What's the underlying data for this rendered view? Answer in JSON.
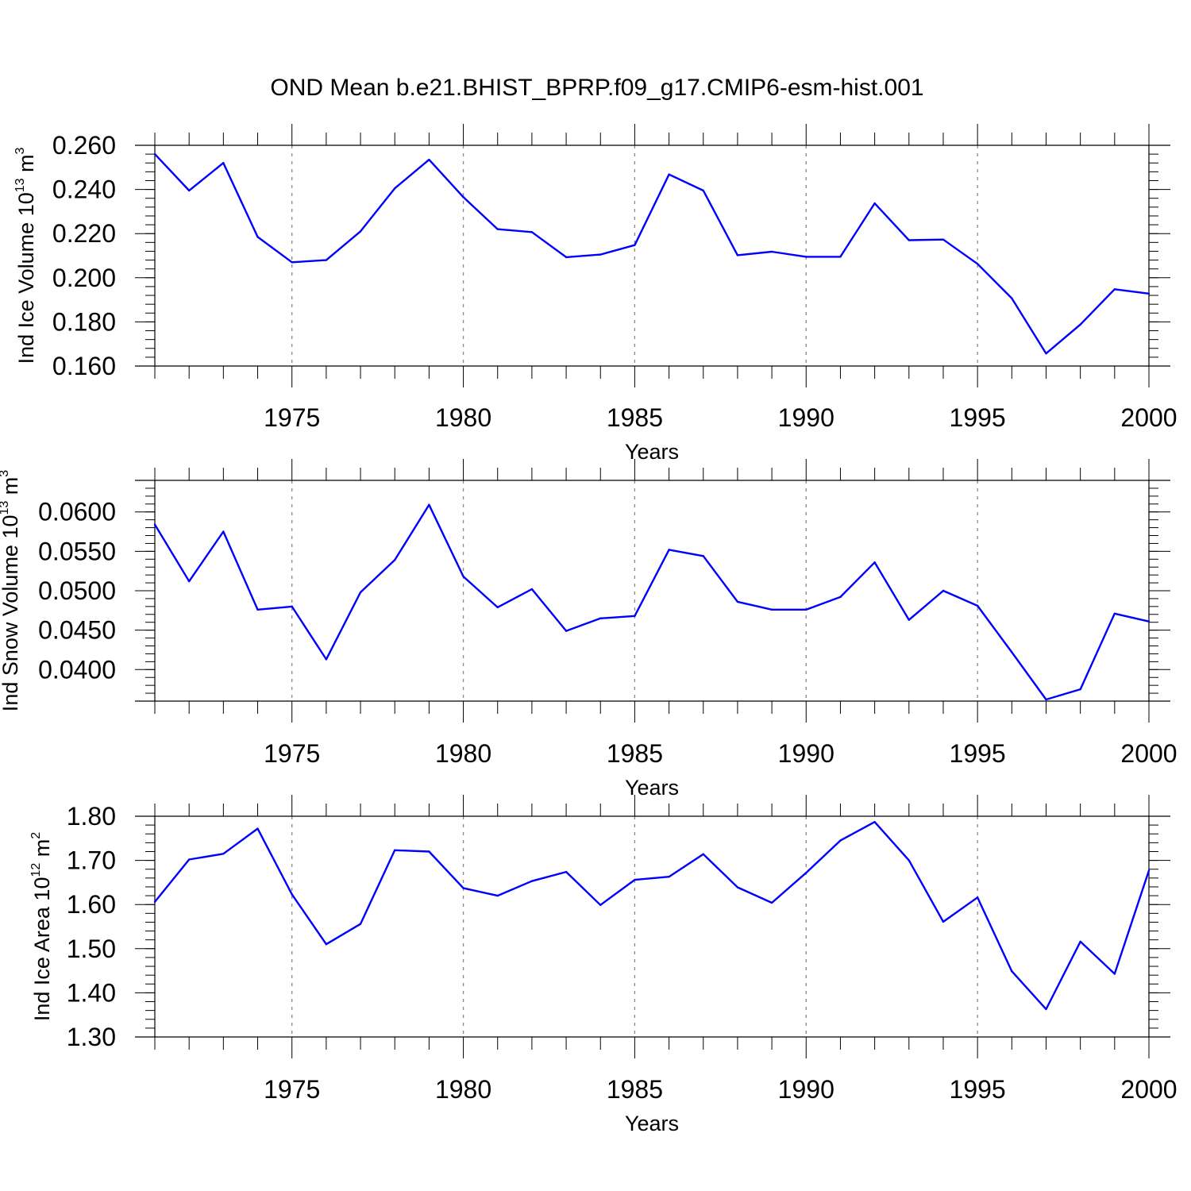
{
  "figure": {
    "title": "OND Mean b.e21.BHIST_BPRP.f09_g17.CMIP6-esm-hist.001"
  },
  "colors": {
    "line": "#0000ff",
    "grid": "#888888",
    "axis": "#000000"
  },
  "chart_data": [
    {
      "type": "line",
      "name": "ice-volume",
      "ylabel": {
        "main": "Ind Ice Volume 10",
        "exp": "13",
        "unit": " m",
        "unit_exp": "3"
      },
      "xlabel": "Years",
      "xlim": [
        1971,
        2000
      ],
      "ylim": [
        0.16,
        0.26
      ],
      "yticks": [
        0.16,
        0.18,
        0.2,
        0.22,
        0.24,
        0.26
      ],
      "ytick_labels": [
        "0.160",
        "0.180",
        "0.200",
        "0.220",
        "0.240",
        "0.260"
      ],
      "yminor": 0.004,
      "xticks": [
        1975,
        1980,
        1985,
        1990,
        1995,
        2000
      ],
      "xtick_labels": [
        "1975",
        "1980",
        "1985",
        "1990",
        "1995",
        "2000"
      ],
      "grid_x": [
        1975,
        1980,
        1985,
        1990,
        1995
      ],
      "x": [
        1971,
        1972,
        1973,
        1974,
        1975,
        1976,
        1977,
        1978,
        1979,
        1980,
        1981,
        1982,
        1983,
        1984,
        1985,
        1986,
        1987,
        1988,
        1989,
        1990,
        1991,
        1992,
        1993,
        1994,
        1995,
        1996,
        1997,
        1998,
        1999,
        2000
      ],
      "values": [
        0.256,
        0.2395,
        0.252,
        0.2185,
        0.207,
        0.208,
        0.221,
        0.2405,
        0.2535,
        0.2365,
        0.222,
        0.2207,
        0.2093,
        0.2105,
        0.2148,
        0.2468,
        0.2395,
        0.2102,
        0.2118,
        0.2095,
        0.2095,
        0.2337,
        0.217,
        0.2173,
        0.2063,
        0.1907,
        0.1657,
        0.1788,
        0.1948,
        0.1928
      ]
    },
    {
      "type": "line",
      "name": "snow-volume",
      "ylabel": {
        "main": "Ind Snow Volume 10",
        "exp": "13",
        "unit": " m",
        "unit_exp": "3"
      },
      "xlabel": "Years",
      "xlim": [
        1971,
        2000
      ],
      "ylim": [
        0.036,
        0.064
      ],
      "yticks": [
        0.04,
        0.045,
        0.05,
        0.055,
        0.06
      ],
      "ytick_labels": [
        "0.0400",
        "0.0450",
        "0.0500",
        "0.0550",
        "0.0600"
      ],
      "yminor": 0.001,
      "xticks": [
        1975,
        1980,
        1985,
        1990,
        1995,
        2000
      ],
      "xtick_labels": [
        "1975",
        "1980",
        "1985",
        "1990",
        "1995",
        "2000"
      ],
      "grid_x": [
        1975,
        1980,
        1985,
        1990,
        1995
      ],
      "x": [
        1971,
        1972,
        1973,
        1974,
        1975,
        1976,
        1977,
        1978,
        1979,
        1980,
        1981,
        1982,
        1983,
        1984,
        1985,
        1986,
        1987,
        1988,
        1989,
        1990,
        1991,
        1992,
        1993,
        1994,
        1995,
        1996,
        1997,
        1998,
        1999,
        2000
      ],
      "values": [
        0.0584,
        0.0512,
        0.0575,
        0.0476,
        0.048,
        0.0413,
        0.0498,
        0.0539,
        0.0609,
        0.0518,
        0.0479,
        0.0502,
        0.0449,
        0.0465,
        0.0468,
        0.0552,
        0.0544,
        0.0486,
        0.0476,
        0.0476,
        0.0492,
        0.0536,
        0.0463,
        0.05,
        0.0481,
        0.0422,
        0.0362,
        0.0375,
        0.0471,
        0.0461
      ]
    },
    {
      "type": "line",
      "name": "ice-area",
      "ylabel": {
        "main": "Ind Ice Area 10",
        "exp": "12",
        "unit": " m",
        "unit_exp": "2"
      },
      "xlabel": "Years",
      "xlim": [
        1971,
        2000
      ],
      "ylim": [
        1.3,
        1.8
      ],
      "yticks": [
        1.3,
        1.4,
        1.5,
        1.6,
        1.7,
        1.8
      ],
      "ytick_labels": [
        "1.30",
        "1.40",
        "1.50",
        "1.60",
        "1.70",
        "1.80"
      ],
      "yminor": 0.02,
      "xticks": [
        1975,
        1980,
        1985,
        1990,
        1995,
        2000
      ],
      "xtick_labels": [
        "1975",
        "1980",
        "1985",
        "1990",
        "1995",
        "2000"
      ],
      "grid_x": [
        1975,
        1980,
        1985,
        1990,
        1995
      ],
      "x": [
        1971,
        1972,
        1973,
        1974,
        1975,
        1976,
        1977,
        1978,
        1979,
        1980,
        1981,
        1982,
        1983,
        1984,
        1985,
        1986,
        1987,
        1988,
        1989,
        1990,
        1991,
        1992,
        1993,
        1994,
        1995,
        1996,
        1997,
        1998,
        1999,
        2000
      ],
      "values": [
        1.606,
        1.702,
        1.715,
        1.772,
        1.623,
        1.51,
        1.556,
        1.723,
        1.72,
        1.637,
        1.62,
        1.653,
        1.674,
        1.599,
        1.656,
        1.663,
        1.714,
        1.639,
        1.604,
        1.672,
        1.745,
        1.787,
        1.7,
        1.561,
        1.616,
        1.449,
        1.363,
        1.516,
        1.443,
        1.677
      ]
    }
  ]
}
